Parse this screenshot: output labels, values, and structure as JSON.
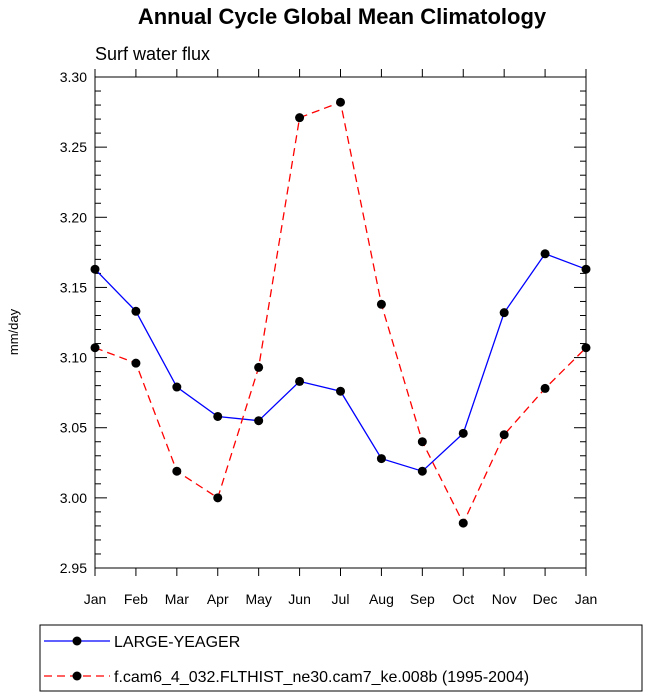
{
  "chart_data": {
    "type": "line",
    "title": "Annual Cycle Global Mean Climatology",
    "subtitle": "Surf water flux",
    "ylabel": "mm/day",
    "xlabel": "",
    "categories": [
      "Jan",
      "Feb",
      "Mar",
      "Apr",
      "May",
      "Jun",
      "Jul",
      "Aug",
      "Sep",
      "Oct",
      "Nov",
      "Dec",
      "Jan"
    ],
    "ylim": [
      2.95,
      3.3
    ],
    "yticks": [
      "2.95",
      "3.00",
      "3.05",
      "3.10",
      "3.15",
      "3.20",
      "3.25",
      "3.30"
    ],
    "grid": false,
    "legend_position": "bottom",
    "series": [
      {
        "name": "LARGE-YEAGER",
        "color": "#0000ff",
        "line_style": "solid",
        "marker": "filled-circle",
        "values": [
          3.163,
          3.133,
          3.079,
          3.058,
          3.055,
          3.083,
          3.076,
          3.028,
          3.019,
          3.046,
          3.132,
          3.174,
          3.163
        ]
      },
      {
        "name": "f.cam6_4_032.FLTHIST_ne30.cam7_ke.008b (1995-2004)",
        "color": "#ff0000",
        "line_style": "dashed",
        "marker": "filled-circle",
        "values": [
          3.107,
          3.096,
          3.019,
          3.0,
          3.093,
          3.271,
          3.282,
          3.138,
          3.04,
          2.982,
          3.045,
          3.078,
          3.107
        ]
      }
    ]
  }
}
